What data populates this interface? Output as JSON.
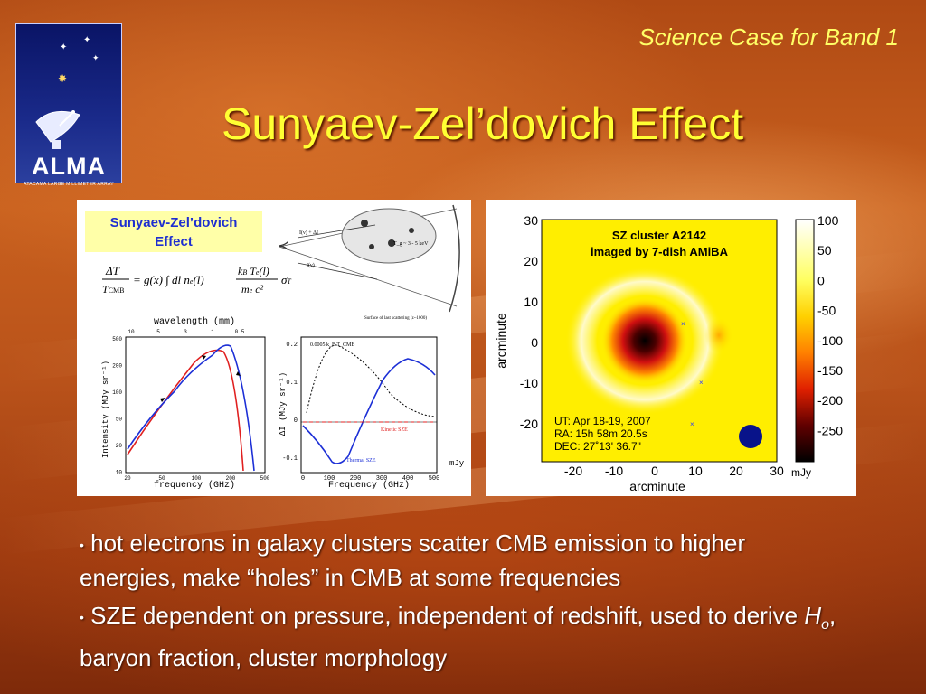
{
  "logo": {
    "name": "ALMA",
    "subtitle": "ATACAMA LARGE MILLIMETER ARRAY"
  },
  "header": {
    "label": "Science Case for Band 1"
  },
  "slide": {
    "title": "Sunyaev-Zel’dovich Effect"
  },
  "left_figure": {
    "box_title_line1": "Sunyaev-Zel’dovich",
    "box_title_line2": "Effect",
    "schematic_labels": [
      "I(ν) + ΔI",
      "I(ν)",
      "T_g ~ 3 - 5 keV",
      "Surface of last scattering (z~1000)"
    ],
    "spectrum_chart": {
      "type": "line",
      "top_axis_label": "wavelength (mm)",
      "top_ticks": [
        "10",
        "5",
        "3",
        "1",
        "0.5"
      ],
      "xlabel": "frequency (GHz)",
      "ylabel": "Intensity (MJy sr⁻¹)",
      "x_ticks": [
        "20",
        "50",
        "100",
        "200",
        "500"
      ],
      "y_ticks": [
        "500",
        "200",
        "100",
        "50",
        "20",
        "10"
      ]
    },
    "distortion_chart": {
      "type": "line",
      "annotation": "0.0005 k_B T_CMB",
      "xlabel": "Frequency (GHz)",
      "ylabel": "ΔI (MJy sr⁻¹)",
      "x_ticks": [
        "0",
        "100",
        "200",
        "300",
        "400",
        "500"
      ],
      "y_ticks": [
        "0.2",
        "0.1",
        "0",
        "-0.1"
      ],
      "series_labels": [
        "Kinetic SZE",
        "Thermal SZE"
      ],
      "unit_note": "mJy"
    }
  },
  "right_figure": {
    "map_title_line1": "SZ cluster A2142",
    "map_title_line2": "imaged by 7-dish AMiBA",
    "obs_ut": "UT: Apr 18-19, 2007",
    "obs_ra": "RA: 15h 58m 20.5s",
    "obs_dec": "DEC: 27˚13' 36.7\"",
    "xlabel": "arcminute",
    "ylabel": "arcminute",
    "x_ticks": [
      "-20",
      "-10",
      "0",
      "10",
      "20",
      "30"
    ],
    "y_ticks": [
      "30",
      "20",
      "10",
      "0",
      "-10",
      "-20"
    ],
    "colorbar_ticks": [
      "100",
      "50",
      "0",
      "-50",
      "-100",
      "-150",
      "-200",
      "-250"
    ],
    "colorbar_unit": "mJy"
  },
  "bullets": [
    "hot electrons in galaxy clusters scatter CMB emission to higher energies, make “holes” in CMB at some frequencies"
  ],
  "bullet2": {
    "text_a": "SZE dependent on pressure, independent of redshift, used to derive ",
    "symbol": "H",
    "subscript": "o",
    "text_b": ", baryon fraction, cluster morphology"
  },
  "colors": {
    "title": "#ffff33",
    "header": "#ffff66",
    "red_curve": "#e02020",
    "blue_curve": "#1c2fd6"
  }
}
